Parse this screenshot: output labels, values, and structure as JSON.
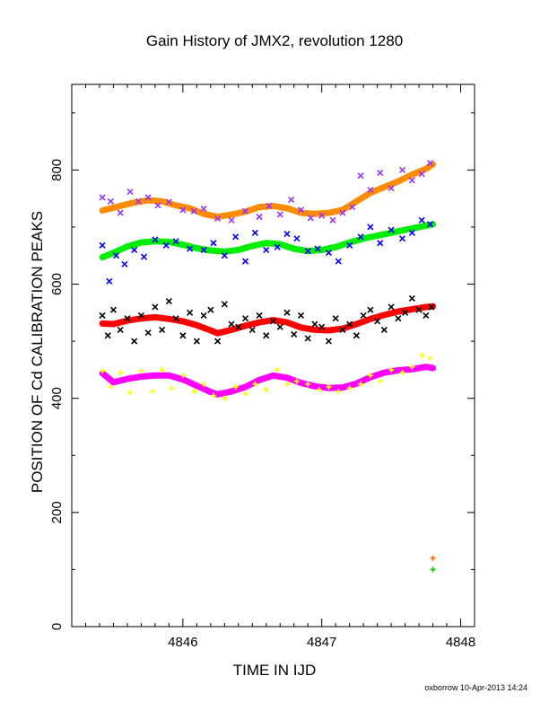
{
  "chart_data": {
    "type": "scatter",
    "title": "Gain History of JMX2, revolution 1280",
    "xlabel": "TIME IN IJD",
    "ylabel": "POSITION OF Cd CALIBRATION PEAKS",
    "xlim": [
      4845.2,
      4848.1
    ],
    "ylim": [
      0,
      950
    ],
    "x_ticks": [
      4846,
      4847,
      4848
    ],
    "x_tick_labels": [
      "4846",
      "4847",
      "4848"
    ],
    "y_ticks": [
      0,
      200,
      400,
      600,
      800
    ],
    "y_tick_labels": [
      "0",
      "200",
      "400",
      "600",
      "800"
    ],
    "grid": false,
    "legend": "none",
    "footer": "oxborrow 10-Apr-2013 14:24",
    "series": [
      {
        "color": "#ff8c00",
        "style": "line",
        "x": [
          4845.42,
          4845.55,
          4845.65,
          4845.75,
          4845.85,
          4845.95,
          4846.05,
          4846.15,
          4846.25,
          4846.35,
          4846.45,
          4846.55,
          4846.65,
          4846.75,
          4846.85,
          4846.95,
          4847.05,
          4847.15,
          4847.25,
          4847.35,
          4847.45,
          4847.55,
          4847.65,
          4847.75,
          4847.8
        ],
        "y": [
          729,
          737,
          743,
          747,
          745,
          738,
          733,
          723,
          718,
          722,
          727,
          735,
          737,
          733,
          725,
          723,
          725,
          730,
          745,
          760,
          770,
          780,
          792,
          802,
          810
        ]
      },
      {
        "color": "#9933ff",
        "style": "points",
        "marker": "x",
        "x": [
          4845.42,
          4845.48,
          4845.55,
          4845.62,
          4845.68,
          4845.75,
          4845.82,
          4845.9,
          4846.0,
          4846.08,
          4846.15,
          4846.25,
          4846.35,
          4846.45,
          4846.55,
          4846.62,
          4846.7,
          4846.78,
          4846.85,
          4846.92,
          4847.0,
          4847.08,
          4847.15,
          4847.22,
          4847.28,
          4847.35,
          4847.42,
          4847.5,
          4847.58,
          4847.65,
          4847.72,
          4847.78
        ],
        "y": [
          752,
          745,
          725,
          762,
          745,
          752,
          738,
          744,
          730,
          728,
          732,
          715,
          712,
          728,
          718,
          737,
          722,
          748,
          730,
          716,
          720,
          712,
          725,
          735,
          790,
          765,
          795,
          768,
          800,
          782,
          793,
          812
        ]
      },
      {
        "color": "#00ee00",
        "style": "line",
        "x": [
          4845.42,
          4845.5,
          4845.6,
          4845.7,
          4845.8,
          4845.9,
          4846.0,
          4846.1,
          4846.2,
          4846.3,
          4846.4,
          4846.5,
          4846.6,
          4846.7,
          4846.8,
          4846.9,
          4847.0,
          4847.1,
          4847.2,
          4847.3,
          4847.4,
          4847.5,
          4847.6,
          4847.7,
          4847.8
        ],
        "y": [
          647,
          655,
          666,
          673,
          675,
          674,
          669,
          663,
          659,
          657,
          660,
          667,
          672,
          670,
          662,
          658,
          660,
          665,
          673,
          680,
          685,
          690,
          695,
          700,
          705
        ]
      },
      {
        "color": "#0000ff",
        "style": "points",
        "marker": "x",
        "x": [
          4845.42,
          4845.47,
          4845.52,
          4845.58,
          4845.65,
          4845.72,
          4845.8,
          4845.88,
          4845.95,
          4846.05,
          4846.15,
          4846.22,
          4846.3,
          4846.38,
          4846.45,
          4846.52,
          4846.6,
          4846.68,
          4846.75,
          4846.82,
          4846.9,
          4846.97,
          4847.05,
          4847.12,
          4847.2,
          4847.28,
          4847.35,
          4847.42,
          4847.5,
          4847.58,
          4847.65,
          4847.72,
          4847.78
        ],
        "y": [
          668,
          605,
          650,
          635,
          660,
          648,
          678,
          668,
          675,
          662,
          660,
          672,
          650,
          683,
          640,
          690,
          660,
          665,
          688,
          680,
          658,
          662,
          655,
          640,
          668,
          683,
          700,
          672,
          695,
          680,
          690,
          712,
          705
        ]
      },
      {
        "color": "#ff0000",
        "style": "line",
        "x": [
          4845.42,
          4845.5,
          4845.6,
          4845.7,
          4845.8,
          4845.9,
          4846.0,
          4846.1,
          4846.2,
          4846.25,
          4846.35,
          4846.45,
          4846.55,
          4846.65,
          4846.75,
          4846.85,
          4846.95,
          4847.05,
          4847.15,
          4847.25,
          4847.35,
          4847.45,
          4847.55,
          4847.65,
          4847.75,
          4847.8
        ],
        "y": [
          531,
          530,
          536,
          540,
          542,
          539,
          535,
          528,
          519,
          514,
          520,
          527,
          533,
          537,
          533,
          524,
          520,
          519,
          522,
          530,
          539,
          546,
          552,
          556,
          560,
          561
        ]
      },
      {
        "color": "#000000",
        "style": "points",
        "marker": "x",
        "x": [
          4845.42,
          4845.46,
          4845.5,
          4845.55,
          4845.6,
          4845.65,
          4845.7,
          4845.75,
          4845.8,
          4845.85,
          4845.9,
          4845.95,
          4846.0,
          4846.05,
          4846.1,
          4846.15,
          4846.2,
          4846.25,
          4846.3,
          4846.35,
          4846.4,
          4846.45,
          4846.5,
          4846.55,
          4846.6,
          4846.65,
          4846.7,
          4846.75,
          4846.8,
          4846.85,
          4846.9,
          4846.95,
          4847.0,
          4847.05,
          4847.1,
          4847.15,
          4847.2,
          4847.25,
          4847.3,
          4847.35,
          4847.4,
          4847.45,
          4847.5,
          4847.55,
          4847.6,
          4847.65,
          4847.7,
          4847.75,
          4847.79
        ],
        "y": [
          545,
          510,
          555,
          520,
          540,
          500,
          545,
          515,
          560,
          520,
          570,
          540,
          510,
          550,
          500,
          545,
          555,
          500,
          565,
          530,
          525,
          540,
          520,
          545,
          510,
          535,
          525,
          550,
          512,
          545,
          505,
          530,
          525,
          500,
          540,
          520,
          530,
          510,
          545,
          555,
          535,
          520,
          560,
          540,
          550,
          575,
          555,
          545,
          560
        ]
      },
      {
        "color": "#ff00ff",
        "style": "line",
        "x": [
          4845.42,
          4845.5,
          4845.6,
          4845.7,
          4845.8,
          4845.9,
          4846.0,
          4846.1,
          4846.2,
          4846.25,
          4846.35,
          4846.45,
          4846.55,
          4846.65,
          4846.75,
          4846.85,
          4846.95,
          4847.05,
          4847.15,
          4847.25,
          4847.35,
          4847.45,
          4847.55,
          4847.65,
          4847.75,
          4847.8
        ],
        "y": [
          444,
          428,
          434,
          438,
          440,
          440,
          433,
          422,
          411,
          407,
          412,
          420,
          432,
          440,
          436,
          427,
          421,
          418,
          419,
          426,
          437,
          445,
          449,
          451,
          455,
          453
        ]
      },
      {
        "color": "#ffff00",
        "style": "points",
        "marker": "+",
        "x": [
          4845.42,
          4845.48,
          4845.55,
          4845.62,
          4845.7,
          4845.78,
          4845.85,
          4845.92,
          4846.0,
          4846.08,
          4846.15,
          4846.22,
          4846.3,
          4846.38,
          4846.45,
          4846.52,
          4846.6,
          4846.68,
          4846.75,
          4846.82,
          4846.9,
          4846.98,
          4847.05,
          4847.12,
          4847.2,
          4847.28,
          4847.35,
          4847.42,
          4847.5,
          4847.58,
          4847.65,
          4847.72,
          4847.78
        ],
        "y": [
          448,
          420,
          445,
          410,
          448,
          412,
          450,
          418,
          440,
          412,
          425,
          405,
          400,
          420,
          408,
          425,
          415,
          450,
          425,
          430,
          425,
          415,
          420,
          412,
          418,
          425,
          440,
          430,
          450,
          445,
          455,
          475,
          470
        ]
      },
      {
        "color": "#ff6600",
        "style": "points",
        "marker": "+",
        "x": [
          4847.8
        ],
        "y": [
          120
        ]
      },
      {
        "color": "#00cc00",
        "style": "points",
        "marker": "+",
        "x": [
          4847.8
        ],
        "y": [
          100
        ]
      }
    ]
  }
}
